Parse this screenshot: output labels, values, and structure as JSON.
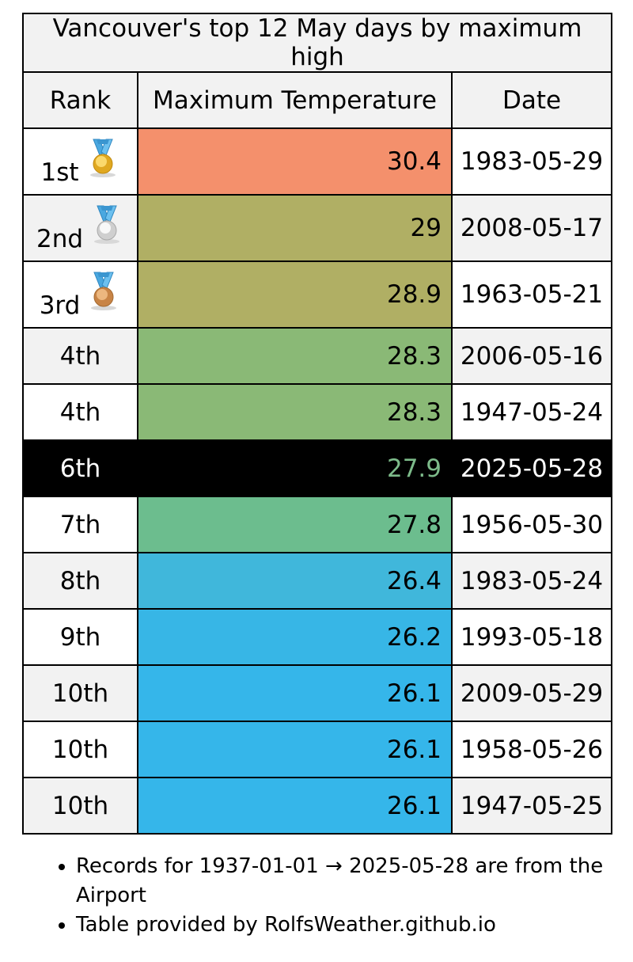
{
  "title": "Vancouver's top 12 May days by maximum high",
  "headers": {
    "rank": "Rank",
    "temp": "Maximum Temperature",
    "date": "Date"
  },
  "rows": [
    {
      "rank": "1st",
      "medal": "gold-medal-icon",
      "temp": "30.4",
      "date": "1983-05-29",
      "temp_bg": "#f4906c",
      "row_bg": "#ffffff",
      "text_color": "#000000",
      "temp_color": "#000000"
    },
    {
      "rank": "2nd",
      "medal": "silver-medal-icon",
      "temp": "29",
      "date": "2008-05-17",
      "temp_bg": "#b0af64",
      "row_bg": "#f2f2f2",
      "text_color": "#000000",
      "temp_color": "#000000"
    },
    {
      "rank": "3rd",
      "medal": "bronze-medal-icon",
      "temp": "28.9",
      "date": "1963-05-21",
      "temp_bg": "#b0af64",
      "row_bg": "#ffffff",
      "text_color": "#000000",
      "temp_color": "#000000"
    },
    {
      "rank": "4th",
      "medal": "",
      "temp": "28.3",
      "date": "2006-05-16",
      "temp_bg": "#8ab976",
      "row_bg": "#f2f2f2",
      "text_color": "#000000",
      "temp_color": "#000000"
    },
    {
      "rank": "4th",
      "medal": "",
      "temp": "28.3",
      "date": "1947-05-24",
      "temp_bg": "#8ab976",
      "row_bg": "#ffffff",
      "text_color": "#000000",
      "temp_color": "#000000"
    },
    {
      "rank": "6th",
      "medal": "",
      "temp": "27.9",
      "date": "2025-05-28",
      "temp_bg": "#000000",
      "row_bg": "#000000",
      "text_color": "#ffffff",
      "temp_color": "#7dbb8a"
    },
    {
      "rank": "7th",
      "medal": "",
      "temp": "27.8",
      "date": "1956-05-30",
      "temp_bg": "#6cbd8e",
      "row_bg": "#ffffff",
      "text_color": "#000000",
      "temp_color": "#000000"
    },
    {
      "rank": "8th",
      "medal": "",
      "temp": "26.4",
      "date": "1983-05-24",
      "temp_bg": "#40b7db",
      "row_bg": "#f2f2f2",
      "text_color": "#000000",
      "temp_color": "#000000"
    },
    {
      "rank": "9th",
      "medal": "",
      "temp": "26.2",
      "date": "1993-05-18",
      "temp_bg": "#37b6e6",
      "row_bg": "#ffffff",
      "text_color": "#000000",
      "temp_color": "#000000"
    },
    {
      "rank": "10th",
      "medal": "",
      "temp": "26.1",
      "date": "2009-05-29",
      "temp_bg": "#35b6ea",
      "row_bg": "#f2f2f2",
      "text_color": "#000000",
      "temp_color": "#000000"
    },
    {
      "rank": "10th",
      "medal": "",
      "temp": "26.1",
      "date": "1958-05-26",
      "temp_bg": "#35b6ea",
      "row_bg": "#ffffff",
      "text_color": "#000000",
      "temp_color": "#000000"
    },
    {
      "rank": "10th",
      "medal": "",
      "temp": "26.1",
      "date": "1947-05-25",
      "temp_bg": "#35b6ea",
      "row_bg": "#f2f2f2",
      "text_color": "#000000",
      "temp_color": "#000000"
    }
  ],
  "notes": [
    "Records for 1937-01-01 → 2025-05-28 are from the Airport",
    "Table provided by RolfsWeather.github.io"
  ]
}
